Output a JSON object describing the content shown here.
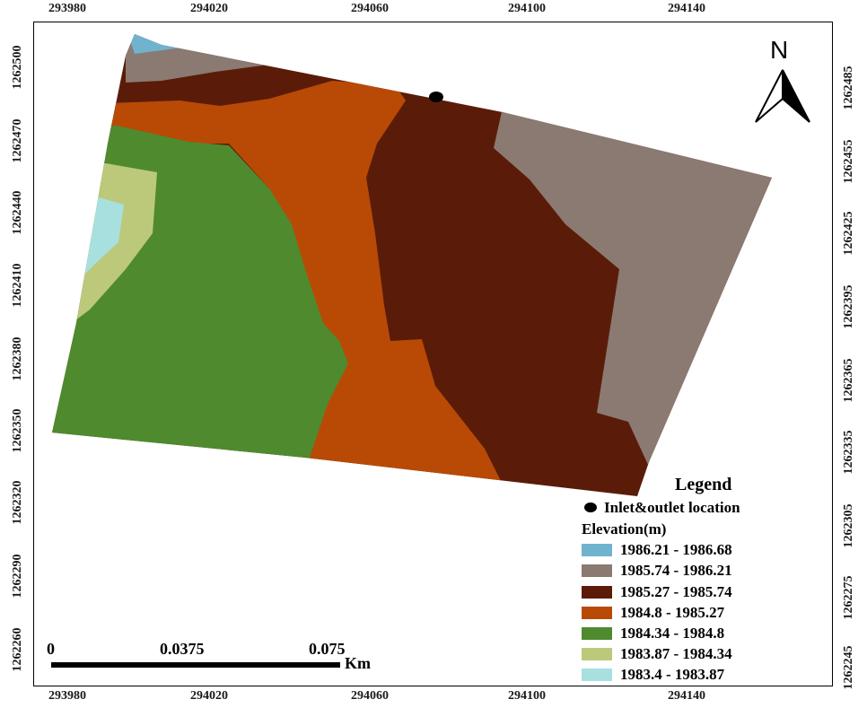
{
  "map": {
    "top_ticks": [
      "293980",
      "294020",
      "294060",
      "294100",
      "294140"
    ],
    "bottom_ticks": [
      "293980",
      "294020",
      "294060",
      "294100",
      "294140"
    ],
    "left_ticks": [
      "1262500",
      "1262470",
      "1262440",
      "1262410",
      "1262380",
      "1262350",
      "1262320",
      "1262290",
      "1262260"
    ],
    "right_ticks": [
      "1262485",
      "1262455",
      "1262425",
      "1262395",
      "1262365",
      "1262335",
      "1262305",
      "1262275",
      "1262245"
    ],
    "north_label": "N",
    "north_icon": "north-arrow-icon"
  },
  "legend": {
    "title": "Legend",
    "point_label": "Inlet&outlet location",
    "elevation_title": "Elevation(m)",
    "classes": [
      {
        "label": "1986.21 - 1986.68",
        "color": "#6fb3cf"
      },
      {
        "label": "1985.74 - 1986.21",
        "color": "#8a7a72"
      },
      {
        "label": "1985.27 - 1985.74",
        "color": "#5a1c08"
      },
      {
        "label": "1984.8 - 1985.27",
        "color": "#b84a06"
      },
      {
        "label": "1984.34 - 1984.8",
        "color": "#4f8a2e"
      },
      {
        "label": "1983.87 - 1984.34",
        "color": "#bcc97a"
      },
      {
        "label": "1983.4 - 1983.87",
        "color": "#a8e0e0"
      }
    ]
  },
  "scale_bar": {
    "label_0": "0",
    "label_mid": "0.0375",
    "label_max": "0.075",
    "unit": "Km"
  }
}
